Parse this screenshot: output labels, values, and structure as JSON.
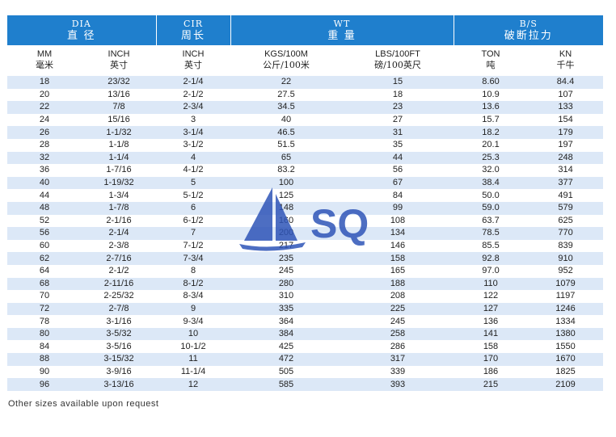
{
  "header_groups": [
    {
      "en": "DIA",
      "zh": "直 径"
    },
    {
      "en": "CIR",
      "zh": "周长"
    },
    {
      "en": "WT",
      "zh": "重 量"
    },
    {
      "en": "B/S",
      "zh": "破断拉力"
    }
  ],
  "sub_headers": [
    {
      "en": "MM",
      "zh": "毫米"
    },
    {
      "en": "INCH",
      "zh": "英寸"
    },
    {
      "en": "INCH",
      "zh": "英寸"
    },
    {
      "en": "KGS/100M",
      "zh": "公斤/100米"
    },
    {
      "en": "LBS/100FT",
      "zh": "磅/100英尺"
    },
    {
      "en": "TON",
      "zh": "吨"
    },
    {
      "en": "KN",
      "zh": "千牛"
    }
  ],
  "rows": [
    [
      "18",
      "23/32",
      "2-1/4",
      "22",
      "15",
      "8.60",
      "84.4"
    ],
    [
      "20",
      "13/16",
      "2-1/2",
      "27.5",
      "18",
      "10.9",
      "107"
    ],
    [
      "22",
      "7/8",
      "2-3/4",
      "34.5",
      "23",
      "13.6",
      "133"
    ],
    [
      "24",
      "15/16",
      "3",
      "40",
      "27",
      "15.7",
      "154"
    ],
    [
      "26",
      "1-1/32",
      "3-1/4",
      "46.5",
      "31",
      "18.2",
      "179"
    ],
    [
      "28",
      "1-1/8",
      "3-1/2",
      "51.5",
      "35",
      "20.1",
      "197"
    ],
    [
      "32",
      "1-1/4",
      "4",
      "65",
      "44",
      "25.3",
      "248"
    ],
    [
      "36",
      "1-7/16",
      "4-1/2",
      "83.2",
      "56",
      "32.0",
      "314"
    ],
    [
      "40",
      "1-19/32",
      "5",
      "100",
      "67",
      "38.4",
      "377"
    ],
    [
      "44",
      "1-3/4",
      "5-1/2",
      "125",
      "84",
      "50.0",
      "491"
    ],
    [
      "48",
      "1-7/8",
      "6",
      "148",
      "99",
      "59.0",
      "579"
    ],
    [
      "52",
      "2-1/16",
      "6-1/2",
      "160",
      "108",
      "63.7",
      "625"
    ],
    [
      "56",
      "2-1/4",
      "7",
      "200",
      "134",
      "78.5",
      "770"
    ],
    [
      "60",
      "2-3/8",
      "7-1/2",
      "217",
      "146",
      "85.5",
      "839"
    ],
    [
      "62",
      "2-7/16",
      "7-3/4",
      "235",
      "158",
      "92.8",
      "910"
    ],
    [
      "64",
      "2-1/2",
      "8",
      "245",
      "165",
      "97.0",
      "952"
    ],
    [
      "68",
      "2-11/16",
      "8-1/2",
      "280",
      "188",
      "110",
      "1079"
    ],
    [
      "70",
      "2-25/32",
      "8-3/4",
      "310",
      "208",
      "122",
      "1197"
    ],
    [
      "72",
      "2-7/8",
      "9",
      "335",
      "225",
      "127",
      "1246"
    ],
    [
      "78",
      "3-1/16",
      "9-3/4",
      "364",
      "245",
      "136",
      "1334"
    ],
    [
      "80",
      "3-5/32",
      "10",
      "384",
      "258",
      "141",
      "1380"
    ],
    [
      "84",
      "3-5/16",
      "10-1/2",
      "425",
      "286",
      "158",
      "1550"
    ],
    [
      "88",
      "3-15/32",
      "11",
      "472",
      "317",
      "170",
      "1670"
    ],
    [
      "90",
      "3-9/16",
      "11-1/4",
      "505",
      "339",
      "186",
      "1825"
    ],
    [
      "96",
      "3-13/16",
      "12",
      "585",
      "393",
      "215",
      "2109"
    ]
  ],
  "footnote": "Other sizes available upon request",
  "watermark": {
    "text": "SQ",
    "color": "#2f55b8",
    "icon": "sailboat-logo-icon"
  },
  "colors": {
    "header_bg": "#1f7fcd",
    "stripe": "#dce8f7"
  }
}
